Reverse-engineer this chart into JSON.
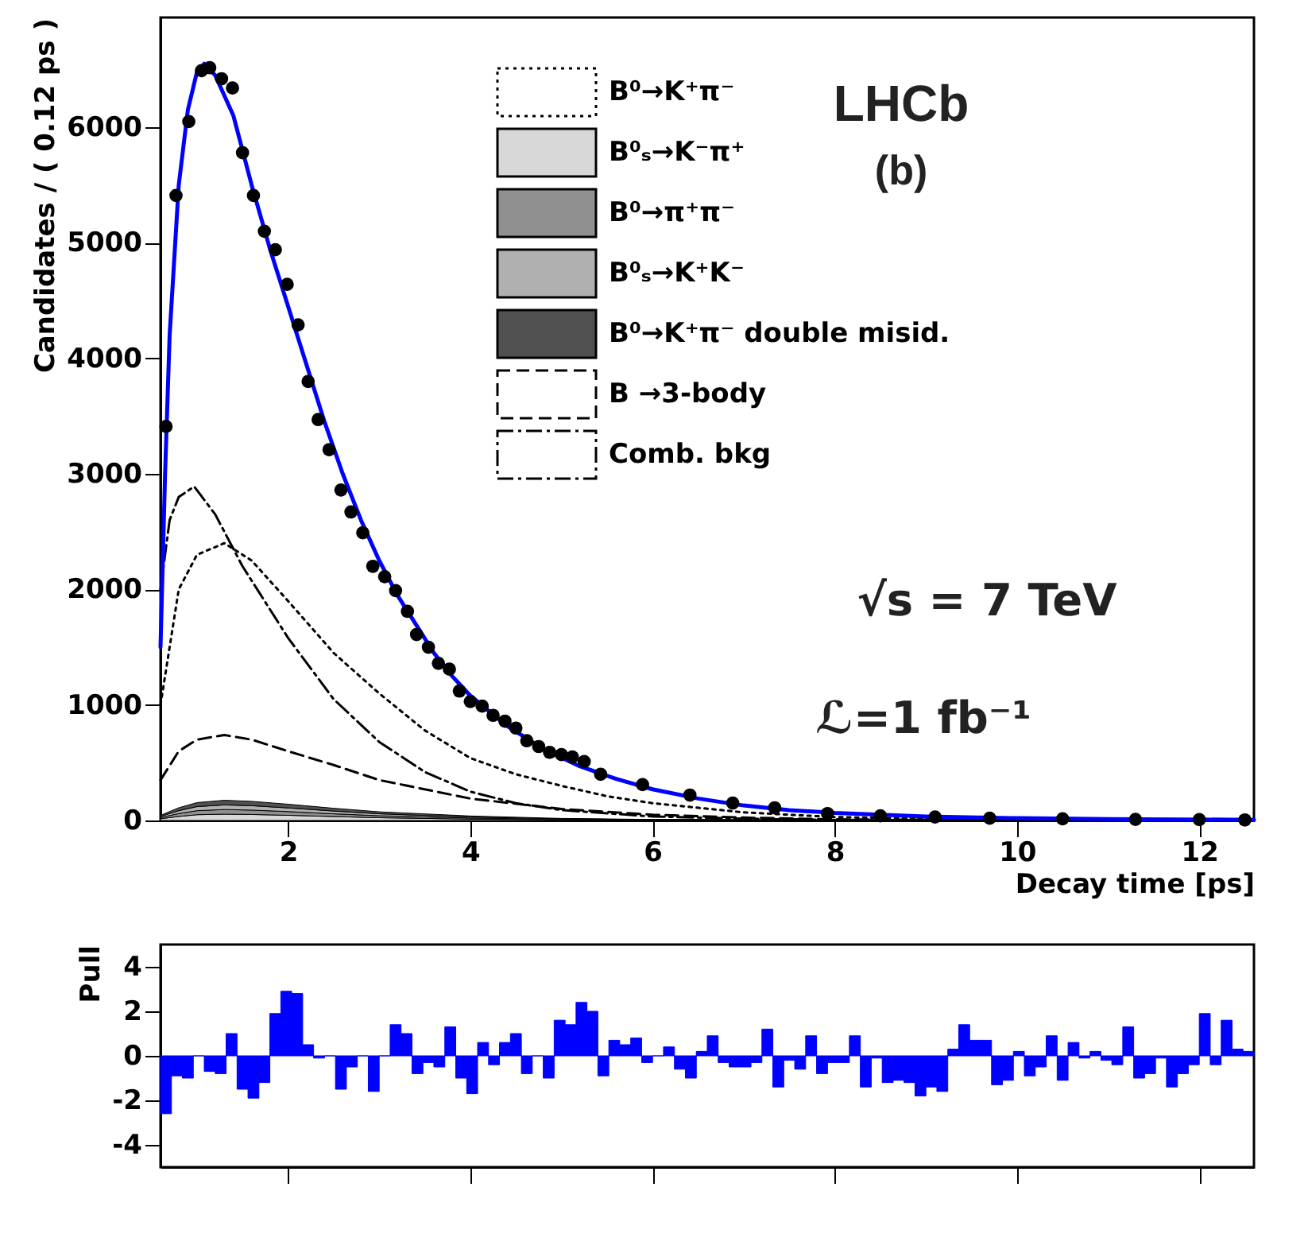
{
  "chart_data": [
    {
      "type": "scatter",
      "xlabel": "Decay time [ps]",
      "ylabel": "Candidates / ( 0.12 ps )",
      "xlim": [
        0.6,
        12.6
      ],
      "ylim": [
        0,
        6950
      ],
      "xticks": [
        2,
        4,
        6,
        8,
        10,
        12
      ],
      "yticks": [
        0,
        1000,
        2000,
        3000,
        4000,
        5000,
        6000
      ],
      "grid": false,
      "legend": "top right",
      "stacked": true,
      "annotations": [
        "LHCb",
        "(b)",
        "√s = 7 TeV",
        "ℒ=1 fb⁻¹"
      ],
      "series": [
        {
          "type": "line",
          "name": "B⁰→K⁺π⁻",
          "color": "#000000",
          "line_style": "dotted",
          "x": [
            0.6,
            0.8,
            1.0,
            1.3,
            1.6,
            2.0,
            2.5,
            3.0,
            3.5,
            4.0,
            4.5,
            5.0,
            5.5,
            6.0,
            7.0,
            8.0,
            9.0,
            10.0,
            12.6
          ],
          "values": [
            1000,
            2000,
            2300,
            2400,
            2250,
            1900,
            1450,
            1100,
            780,
            540,
            400,
            300,
            210,
            150,
            70,
            30,
            15,
            8,
            2
          ]
        },
        {
          "type": "area",
          "name": "B⁰ₛ→K⁻π⁺",
          "color": "#d8d8d8",
          "x": [
            0.6,
            0.8,
            1.0,
            1.3,
            1.6,
            2.0,
            2.5,
            3.0,
            4.0,
            5.0,
            6.0,
            8.0,
            12.6
          ],
          "values": [
            15,
            35,
            50,
            55,
            52,
            45,
            34,
            24,
            12,
            6,
            3,
            1,
            0
          ]
        },
        {
          "type": "area",
          "name": "B⁰→π⁺π⁻",
          "color": "#909090",
          "x": [
            0.6,
            0.8,
            1.0,
            1.3,
            1.6,
            2.0,
            2.5,
            3.0,
            4.0,
            5.0,
            6.0,
            8.0,
            12.6
          ],
          "values": [
            10,
            25,
            35,
            40,
            38,
            32,
            24,
            17,
            9,
            4,
            2,
            1,
            0
          ]
        },
        {
          "type": "area",
          "name": "B⁰ₛ→K⁺K⁻",
          "color": "#b0b0b0",
          "x": [
            0.6,
            0.8,
            1.0,
            1.3,
            1.6,
            2.0,
            2.5,
            3.0,
            4.0,
            5.0,
            6.0,
            8.0,
            12.6
          ],
          "values": [
            10,
            25,
            35,
            40,
            38,
            32,
            24,
            17,
            9,
            4,
            2,
            1,
            0
          ]
        },
        {
          "type": "area",
          "name": "B⁰→K⁺π⁻ double misid.",
          "color": "#505050",
          "x": [
            0.6,
            0.8,
            1.0,
            1.3,
            1.6,
            2.0,
            2.5,
            3.0,
            4.0,
            5.0,
            6.0,
            8.0,
            12.6
          ],
          "values": [
            10,
            25,
            35,
            40,
            38,
            32,
            24,
            17,
            9,
            4,
            2,
            1,
            0
          ]
        },
        {
          "type": "line",
          "name": "B →3-body",
          "color": "#000000",
          "line_style": "dashed",
          "x": [
            0.6,
            0.8,
            1.0,
            1.3,
            1.6,
            2.0,
            2.5,
            3.0,
            4.0,
            5.0,
            6.0,
            7.0,
            8.0,
            10.0,
            12.6
          ],
          "values": [
            350,
            600,
            700,
            740,
            700,
            600,
            480,
            350,
            190,
            100,
            50,
            25,
            10,
            3,
            0
          ]
        },
        {
          "type": "line",
          "name": "Comb. bkg",
          "color": "#000000",
          "line_style": "dashdot",
          "x": [
            0.6,
            0.7,
            0.8,
            0.97,
            1.2,
            1.5,
            2.0,
            2.5,
            3.0,
            3.5,
            4.0,
            4.5,
            5.0,
            6.0,
            7.0,
            8.0,
            10.0,
            12.6
          ],
          "values": [
            2000,
            2600,
            2800,
            2890,
            2650,
            2200,
            1580,
            1050,
            680,
            420,
            250,
            150,
            90,
            35,
            15,
            5,
            1,
            0
          ]
        },
        {
          "type": "line",
          "color": "#0000ff",
          "line_style": "solid",
          "x": [
            0.6,
            0.65,
            0.7,
            0.8,
            0.9,
            1.0,
            1.08,
            1.2,
            1.4,
            1.6,
            1.8,
            2.0,
            2.2,
            2.4,
            2.6,
            2.8,
            3.0,
            3.2,
            3.4,
            3.6,
            3.8,
            4.0,
            4.4,
            4.8,
            5.2,
            5.6,
            6.0,
            6.5,
            7.0,
            7.5,
            8.0,
            9.0,
            10.0,
            11.0,
            12.6
          ],
          "values": [
            1500,
            3000,
            4200,
            5500,
            6150,
            6480,
            6550,
            6450,
            6100,
            5500,
            4950,
            4450,
            3950,
            3450,
            3000,
            2600,
            2250,
            1950,
            1700,
            1450,
            1250,
            1080,
            820,
            620,
            470,
            360,
            270,
            190,
            130,
            90,
            65,
            35,
            20,
            12,
            6
          ]
        },
        {
          "type": "scatter",
          "color": "#000000",
          "marker": "circle",
          "x": [
            0.66,
            0.77,
            0.91,
            1.05,
            1.14,
            1.27,
            1.39,
            1.5,
            1.62,
            1.74,
            1.86,
            1.99,
            2.11,
            2.22,
            2.33,
            2.45,
            2.58,
            2.69,
            2.82,
            2.93,
            3.06,
            3.18,
            3.31,
            3.41,
            3.54,
            3.65,
            3.77,
            3.88,
            4.0,
            4.13,
            4.25,
            4.38,
            4.5,
            4.62,
            4.75,
            4.87,
            5.0,
            5.12,
            5.25,
            5.43,
            5.89,
            6.41,
            6.88,
            7.34,
            7.92,
            8.5,
            9.1,
            9.7,
            10.5,
            11.3,
            12.0,
            12.5
          ],
          "values": [
            3410,
            5410,
            6050,
            6490,
            6515,
            6420,
            6340,
            5780,
            5410,
            5100,
            4940,
            4640,
            4290,
            3800,
            3470,
            3210,
            2860,
            2670,
            2490,
            2200,
            2110,
            1990,
            1810,
            1610,
            1500,
            1360,
            1310,
            1120,
            1030,
            990,
            910,
            860,
            800,
            690,
            640,
            590,
            570,
            550,
            510,
            400,
            310,
            220,
            150,
            110,
            60,
            40,
            30,
            20,
            15,
            10,
            8,
            5
          ]
        }
      ]
    },
    {
      "type": "histogram",
      "ylabel": "Pull",
      "color": "#0000ff",
      "xlim": [
        0.6,
        12.6
      ],
      "xticks": [
        {
          "value": 2,
          "label": null
        },
        {
          "value": 4,
          "label": null
        },
        {
          "value": 6,
          "label": null
        },
        {
          "value": 8,
          "label": null
        },
        {
          "value": 10,
          "label": null
        },
        {
          "value": 12,
          "label": null
        }
      ],
      "ylim": [
        -5,
        5
      ],
      "yticks": [
        -4,
        -2,
        0,
        2,
        4
      ],
      "tick_labels": "y",
      "grid": false,
      "bins": [
        0.6,
        0.72,
        0.84,
        0.96,
        1.08,
        1.2,
        1.32,
        1.44,
        1.56,
        1.68,
        1.8,
        1.92,
        2.04,
        2.16,
        2.28,
        2.4,
        2.52,
        2.64,
        2.76,
        2.88,
        3.0,
        3.12,
        3.24,
        3.36,
        3.48,
        3.6,
        3.72,
        3.84,
        3.96,
        4.08,
        4.2,
        4.32,
        4.44,
        4.56,
        4.68,
        4.8,
        4.92,
        5.04,
        5.16,
        5.28,
        5.4,
        5.52,
        5.64,
        5.76,
        5.88,
        6.0,
        6.12,
        6.24,
        6.36,
        6.48,
        6.6,
        6.72,
        6.84,
        6.96,
        7.08,
        7.2,
        7.32,
        7.44,
        7.56,
        7.68,
        7.8,
        7.92,
        8.04,
        8.16,
        8.28,
        8.4,
        8.52,
        8.64,
        8.76,
        8.88,
        9.0,
        9.12,
        9.24,
        9.36,
        9.48,
        9.6,
        9.72,
        9.84,
        9.96,
        10.08,
        10.2,
        10.32,
        10.44,
        10.56,
        10.68,
        10.8,
        10.92,
        11.04,
        11.16,
        11.28,
        11.4,
        11.52,
        11.64,
        11.76,
        11.88,
        12.0,
        12.12,
        12.24,
        12.36,
        12.48,
        12.6
      ],
      "values": [
        -2.6,
        -0.9,
        -1.0,
        0,
        -0.7,
        -0.8,
        1.0,
        -1.5,
        -1.9,
        -1.2,
        1.9,
        2.9,
        2.8,
        0.5,
        -0.1,
        0,
        -1.5,
        -0.5,
        0,
        -1.6,
        0,
        1.4,
        1.0,
        -0.8,
        -0.3,
        -0.5,
        1.3,
        -1.0,
        -1.7,
        0.6,
        -0.4,
        0.6,
        1.0,
        -0.8,
        0,
        -1.0,
        1.6,
        1.4,
        2.4,
        2.0,
        -0.9,
        0.7,
        0.5,
        0.8,
        -0.3,
        0,
        0.4,
        -0.6,
        -1.0,
        0.2,
        0.9,
        -0.3,
        -0.5,
        -0.5,
        -0.3,
        1.2,
        -1.4,
        -0.2,
        -0.6,
        0.9,
        -0.8,
        -0.3,
        -0.3,
        0.9,
        -1.4,
        -0.1,
        -1.2,
        -1.1,
        -1.2,
        -1.8,
        -1.4,
        -1.6,
        0.3,
        1.4,
        0.7,
        0.7,
        -1.3,
        -1.1,
        0.2,
        -0.9,
        -0.5,
        0.9,
        -1.1,
        0.6,
        -0.1,
        0.2,
        -0.2,
        -0.4,
        1.3,
        -1.0,
        -0.8,
        -0.1,
        -1.4,
        -0.8,
        -0.4,
        1.9,
        -0.4,
        1.6,
        0.3,
        0.2
      ]
    }
  ]
}
